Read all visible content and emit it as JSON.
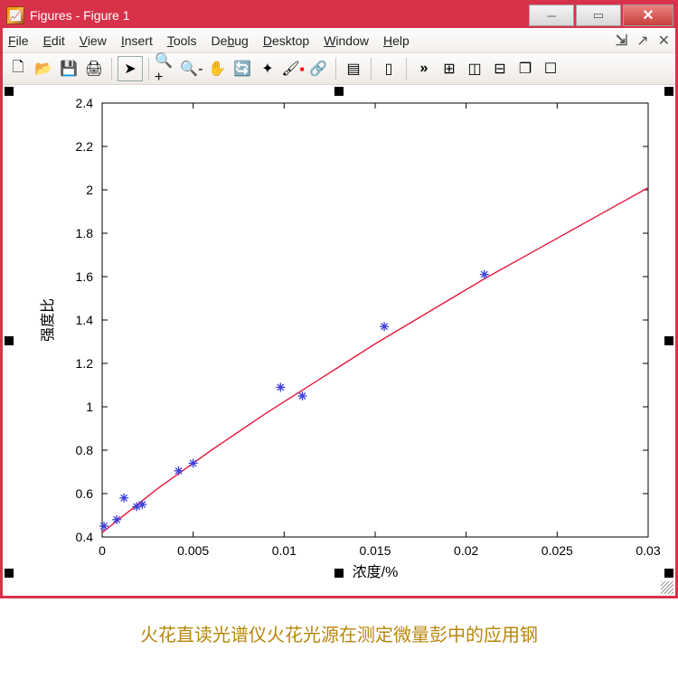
{
  "title": "Figures - Figure 1",
  "menu": [
    "File",
    "Edit",
    "View",
    "Insert",
    "Tools",
    "Debug",
    "Desktop",
    "Window",
    "Help"
  ],
  "caption": "火花直读光谱仪火花光源在测定微量彭中的应用钢",
  "chart": {
    "type": "scatter-with-fit",
    "xlabel": "浓度/%",
    "ylabel": "强度比",
    "xlim": [
      0,
      0.03
    ],
    "ylim": [
      0.4,
      2.4
    ],
    "xticks": [
      0,
      0.005,
      0.01,
      0.015,
      0.02,
      0.025,
      0.03
    ],
    "xticklabels": [
      "0",
      "0.005",
      "0.01",
      "0.015",
      "0.02",
      "0.025",
      "0.03"
    ],
    "yticks": [
      0.4,
      0.6,
      0.8,
      1,
      1.2,
      1.4,
      1.6,
      1.8,
      2,
      2.2,
      2.4
    ],
    "yticklabels": [
      "0.4",
      "0.6",
      "0.8",
      "1",
      "1.2",
      "1.4",
      "1.6",
      "1.8",
      "2",
      "2.2",
      "2.4"
    ],
    "points": [
      [
        0.0001,
        0.45
      ],
      [
        0.0008,
        0.48
      ],
      [
        0.0012,
        0.58
      ],
      [
        0.0019,
        0.54
      ],
      [
        0.0022,
        0.55
      ],
      [
        0.0042,
        0.705
      ],
      [
        0.005,
        0.74
      ],
      [
        0.0098,
        1.09
      ],
      [
        0.011,
        1.05
      ],
      [
        0.0155,
        1.37
      ],
      [
        0.021,
        1.61
      ]
    ],
    "curve": [
      [
        0.0,
        0.42
      ],
      [
        0.003,
        0.62
      ],
      [
        0.006,
        0.8
      ],
      [
        0.009,
        0.97
      ],
      [
        0.012,
        1.13
      ],
      [
        0.015,
        1.29
      ],
      [
        0.018,
        1.44
      ],
      [
        0.021,
        1.59
      ],
      [
        0.024,
        1.73
      ],
      [
        0.027,
        1.87
      ],
      [
        0.03,
        2.01
      ]
    ],
    "marker_color": "#3a3fd8",
    "line_color": "#e6193c",
    "axis_color": "#000000",
    "bg_color": "#ffffff",
    "tick_fontsize": 14,
    "label_fontsize": 16,
    "line_width": 1.4
  }
}
